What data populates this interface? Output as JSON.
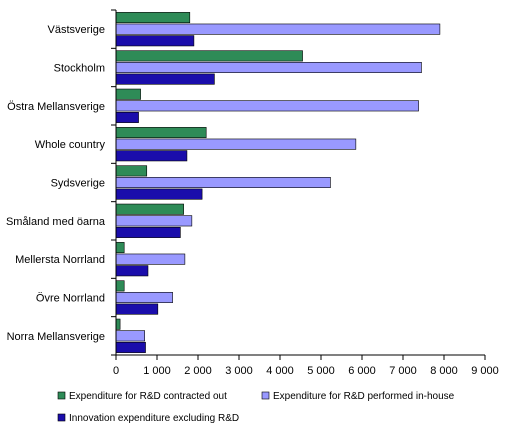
{
  "chart_data": {
    "type": "bar",
    "orientation": "horizontal",
    "categories": [
      "Västsverige",
      "Stockholm",
      "Östra Mellansverige",
      "Whole country",
      "Sydsverige",
      "Småland med öarna",
      "Mellersta Norrland",
      "Övre Norrland",
      "Norra Mellansverige"
    ],
    "series": [
      {
        "name": "Expenditure for R&D contracted out",
        "color": "#2e8b57",
        "values": [
          1800,
          4550,
          600,
          2200,
          750,
          1650,
          200,
          200,
          100
        ]
      },
      {
        "name": "Expenditure for R&D performed in-house",
        "color": "#9999ff",
        "values": [
          7900,
          7450,
          7380,
          5850,
          5230,
          1850,
          1680,
          1380,
          700
        ]
      },
      {
        "name": "Innovation expenditure excluding R&D",
        "color": "#1a0dab",
        "values": [
          1900,
          2400,
          550,
          1730,
          2100,
          1570,
          780,
          1020,
          720
        ]
      }
    ],
    "xlim": [
      0,
      9000
    ],
    "xticks": [
      0,
      1000,
      2000,
      3000,
      4000,
      5000,
      6000,
      7000,
      8000,
      9000
    ],
    "xtick_labels": [
      "0",
      "1 000",
      "2 000",
      "3 000",
      "4 000",
      "5 000",
      "6 000",
      "7 000",
      "8 000",
      "9 000"
    ],
    "grid": false,
    "legend_position": "bottom"
  }
}
